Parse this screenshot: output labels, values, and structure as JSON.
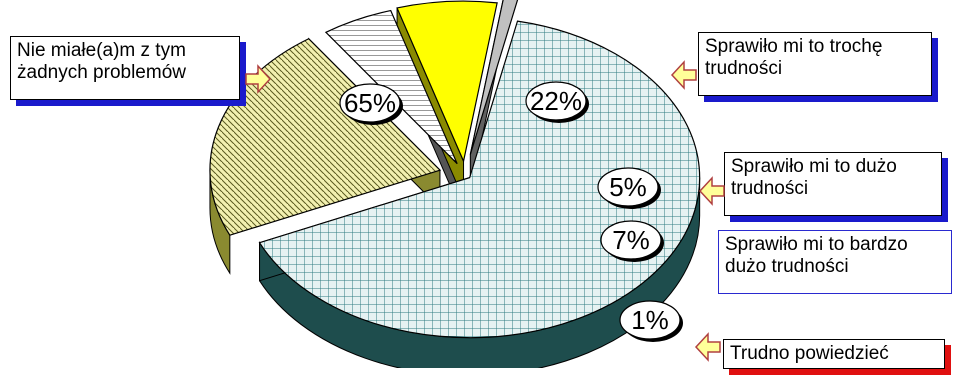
{
  "chart_data": {
    "type": "pie",
    "style": "3d-exploded",
    "slices": [
      {
        "label": "Nie miałe(a)m z tym żadnych problemów",
        "value": 65,
        "value_label": "65%",
        "fill": "#e6f2f2",
        "pattern": "grid",
        "pattern_color": "#2e7b80",
        "side": "#1e4d4d"
      },
      {
        "label": "Sprawiło mi to trochę trudności",
        "value": 22,
        "value_label": "22%",
        "fill": "#f2f0b0",
        "pattern": "diagonal",
        "pattern_color": "#5a5a20",
        "side": "#8a8a30"
      },
      {
        "label": "Sprawiło mi to dużo trudności",
        "value": 5,
        "value_label": "5%",
        "fill": "#ffffff",
        "pattern": "horizontal",
        "pattern_color": "#333333",
        "side": "#555555"
      },
      {
        "label": "Sprawiło mi to bardzo dużo trudności",
        "value": 7,
        "value_label": "7%",
        "fill": "#ffff00",
        "pattern": "none",
        "pattern_color": "#000000",
        "side": "#8a8a00"
      },
      {
        "label": "Trudno powiedzieć",
        "value": 1,
        "value_label": "1%",
        "fill": "#c0c0c0",
        "pattern": "none",
        "pattern_color": "#000000",
        "side": "#606060"
      }
    ],
    "legend": "callouts"
  },
  "callouts": {
    "c65": {
      "line1": "Nie miałe(a)m z tym",
      "line2": "żadnych problemów",
      "shadow": "#1a1acc"
    },
    "c22": {
      "line1": "Sprawiło mi to trochę",
      "line2": "trudności",
      "shadow": "#1a1acc"
    },
    "c5": {
      "line1": "Sprawiło mi to dużo",
      "line2": "trudności",
      "shadow": "#1a1acc"
    },
    "c7": {
      "line1": "Sprawiło mi to bardzo",
      "line2": "dużo trudności",
      "shadow": "#1a1acc"
    },
    "c1": {
      "line1": "Trudno powiedzieć",
      "shadow": "#e01010"
    }
  },
  "colors": {
    "arrow_fill": "#ffff99",
    "arrow_stroke": "#b04040",
    "label_bubble": "#ffffff"
  }
}
